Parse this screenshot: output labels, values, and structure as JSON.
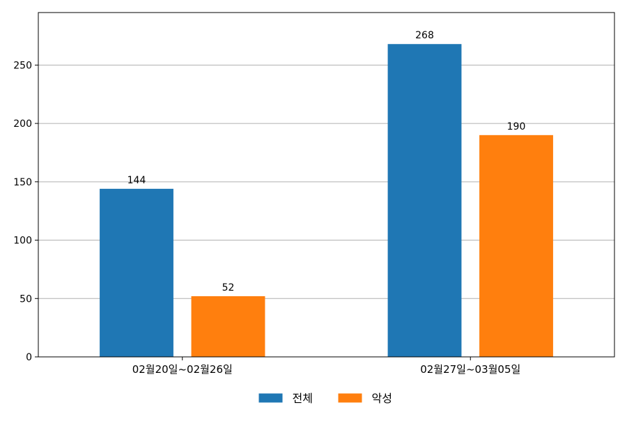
{
  "chart_data": {
    "type": "bar",
    "title": "",
    "xlabel": "",
    "ylabel": "",
    "categories": [
      "02월20일~02월26일",
      "02월27일~03월05일"
    ],
    "series": [
      {
        "name": "전체",
        "values": [
          144,
          268
        ],
        "color": "#1f77b4"
      },
      {
        "name": "악성",
        "values": [
          52,
          190
        ],
        "color": "#ff7f0e"
      }
    ],
    "ylim": [
      0,
      295
    ],
    "yticks": [
      0,
      50,
      100,
      150,
      200,
      250
    ],
    "grid": true,
    "grid_axis": "y",
    "data_labels": true,
    "legend_position": "bottom-center"
  }
}
